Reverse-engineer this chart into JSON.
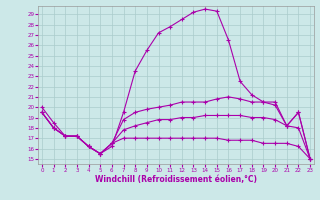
{
  "xlabel": "Windchill (Refroidissement éolien,°C)",
  "bg_color": "#cce8e8",
  "line_color": "#aa00aa",
  "grid_color": "#aacccc",
  "x_ticks": [
    0,
    1,
    2,
    3,
    4,
    5,
    6,
    7,
    8,
    9,
    10,
    11,
    12,
    13,
    14,
    15,
    16,
    17,
    18,
    19,
    20,
    21,
    22,
    23
  ],
  "y_ticks": [
    15,
    16,
    17,
    18,
    19,
    20,
    21,
    22,
    23,
    24,
    25,
    26,
    27,
    28,
    29
  ],
  "ylim": [
    14.5,
    29.8
  ],
  "xlim": [
    -0.3,
    23.3
  ],
  "series1": [
    20,
    18.5,
    17.2,
    17.2,
    16.2,
    15.5,
    16.2,
    19.5,
    23.5,
    25.5,
    27.2,
    27.8,
    28.5,
    29.2,
    29.5,
    29.3,
    26.5,
    22.5,
    21.2,
    20.5,
    20.5,
    18.2,
    19.5,
    15.0
  ],
  "series2": [
    19.5,
    18.0,
    17.2,
    17.2,
    16.2,
    15.5,
    16.5,
    18.8,
    19.5,
    19.8,
    20.0,
    20.2,
    20.5,
    20.5,
    20.5,
    20.8,
    21.0,
    20.8,
    20.5,
    20.5,
    20.2,
    18.2,
    19.5,
    15.0
  ],
  "series3": [
    19.5,
    18.0,
    17.2,
    17.2,
    16.2,
    15.5,
    16.5,
    17.8,
    18.2,
    18.5,
    18.8,
    18.8,
    19.0,
    19.0,
    19.2,
    19.2,
    19.2,
    19.2,
    19.0,
    19.0,
    18.8,
    18.2,
    18.0,
    15.0
  ],
  "series4": [
    19.5,
    18.0,
    17.2,
    17.2,
    16.2,
    15.5,
    16.5,
    17.0,
    17.0,
    17.0,
    17.0,
    17.0,
    17.0,
    17.0,
    17.0,
    17.0,
    16.8,
    16.8,
    16.8,
    16.5,
    16.5,
    16.5,
    16.2,
    15.0
  ]
}
